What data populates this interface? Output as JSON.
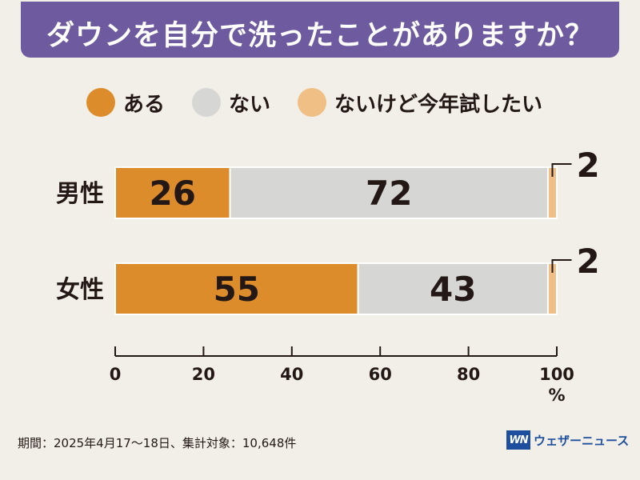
{
  "header": {
    "title": "ダウンを自分で洗ったことがありますか？"
  },
  "legend": [
    {
      "label": "ある",
      "color": "#dd8c2c"
    },
    {
      "label": "ない",
      "color": "#d6d6d4"
    },
    {
      "label": "ないけど今年試したい",
      "color": "#efbf86"
    }
  ],
  "chart_data": {
    "type": "bar",
    "orientation": "horizontal",
    "stacked": true,
    "title": "ダウンを自分で洗ったことがありますか？",
    "categories": [
      "男性",
      "女性"
    ],
    "series": [
      {
        "name": "ある",
        "values": [
          26,
          55
        ],
        "color": "#dd8c2c"
      },
      {
        "name": "ない",
        "values": [
          72,
          43
        ],
        "color": "#d6d6d4"
      },
      {
        "name": "ないけど今年試したい",
        "values": [
          2,
          2
        ],
        "color": "#efbf86"
      }
    ],
    "xlim": [
      0,
      100
    ],
    "xticks": [
      "0",
      "20",
      "40",
      "60",
      "80",
      "100"
    ],
    "xunit": "%",
    "legend_position": "top"
  },
  "footer": {
    "note": "期間：2025年4月17〜18日、集計対象：10,648件",
    "brand_logo": "WN",
    "brand_name": "ウェザーニュース"
  }
}
